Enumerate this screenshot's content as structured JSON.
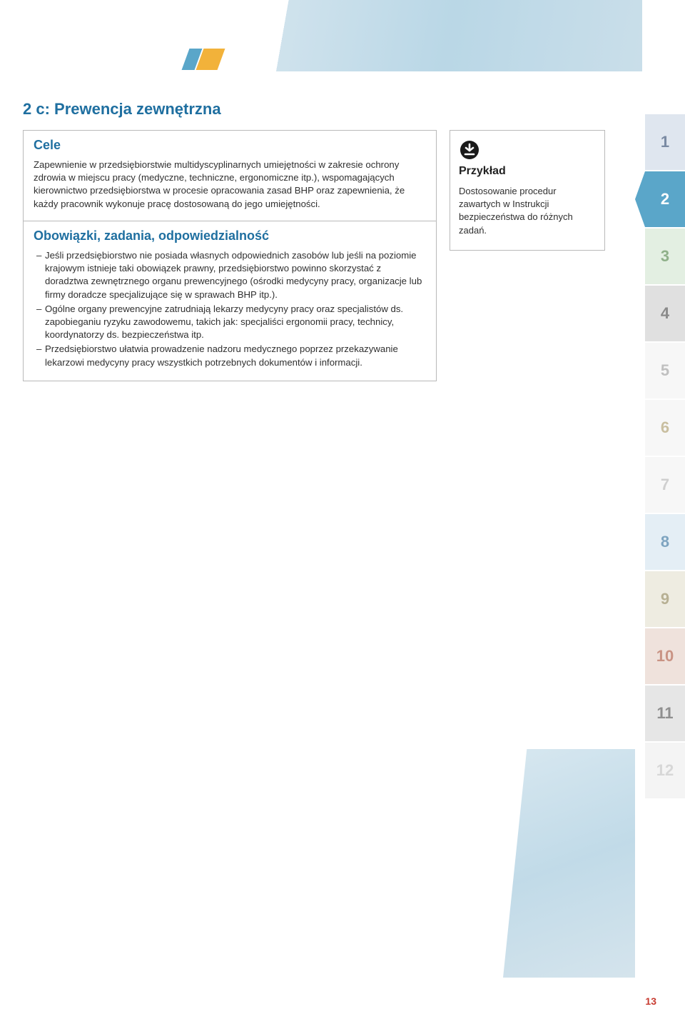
{
  "section_title": "2 c: Prewencja zewnętrzna",
  "cele": {
    "heading": "Cele",
    "text": "Zapewnienie w przedsiębiorstwie multidyscyplinarnych umiejętności w zakresie ochrony zdrowia w miejscu pracy (medyczne, techniczne, ergonomiczne itp.), wspomagających kierownictwo przedsiębiorstwa w procesie opracowania zasad BHP oraz zapewnienia, że każdy pracownik wykonuje pracę dostosowaną do jego umiejętności."
  },
  "obowiazki": {
    "heading": "Obowiązki, zadania, odpowiedzialność",
    "items": [
      "Jeśli przedsiębiorstwo nie posiada własnych odpowiednich zasobów lub jeśli na poziomie krajowym istnieje taki obowiązek prawny, przedsiębiorstwo powinno skorzystać z doradztwa zewnętrznego organu prewencyjnego (ośrodki medycyny pracy, organizacje lub firmy doradcze specjalizujące się w sprawach BHP itp.).",
      "Ogólne organy prewencyjne zatrudniają lekarzy medycyny pracy oraz specjalistów ds. zapobieganiu ryzyku zawodowemu, takich jak: specjaliści ergonomii pracy, technicy, koordynatorzy ds. bezpieczeństwa itp.",
      "Przedsiębiorstwo ułatwia prowadzenie nadzoru medycznego poprzez przekazywanie lekarzowi medycyny pracy wszystkich potrzebnych dokumentów i informacji."
    ]
  },
  "example": {
    "heading": "Przykład",
    "text": "Dostosowanie procedur zawartych w Instrukcji bezpieczeństwa do różnych zadań."
  },
  "tabs": [
    {
      "label": "1",
      "bg": "#dfe6ef",
      "fg": "#7a8aa3",
      "active": false
    },
    {
      "label": "2",
      "bg": "#5aa6c9",
      "fg": "#ffffff",
      "active": true
    },
    {
      "label": "3",
      "bg": "#e3efe2",
      "fg": "#8fb089",
      "active": false
    },
    {
      "label": "4",
      "bg": "#e0e0e0",
      "fg": "#8a8a8a",
      "active": false
    },
    {
      "label": "5",
      "bg": "#f7f7f7",
      "fg": "#c0c0c0",
      "active": false
    },
    {
      "label": "6",
      "bg": "#f7f7f7",
      "fg": "#c9bfa0",
      "active": false
    },
    {
      "label": "7",
      "bg": "#f7f7f7",
      "fg": "#cfcfcf",
      "active": false
    },
    {
      "label": "8",
      "bg": "#e4eef5",
      "fg": "#7ea4c0",
      "active": false
    },
    {
      "label": "9",
      "bg": "#eeece1",
      "fg": "#b7b093",
      "active": false
    },
    {
      "label": "10",
      "bg": "#efe2dc",
      "fg": "#c99384",
      "active": false
    },
    {
      "label": "11",
      "bg": "#e6e6e6",
      "fg": "#8f8f8f",
      "active": false
    },
    {
      "label": "12",
      "bg": "#f4f4f4",
      "fg": "#d7d7d7",
      "active": false
    }
  ],
  "page_number": "13"
}
